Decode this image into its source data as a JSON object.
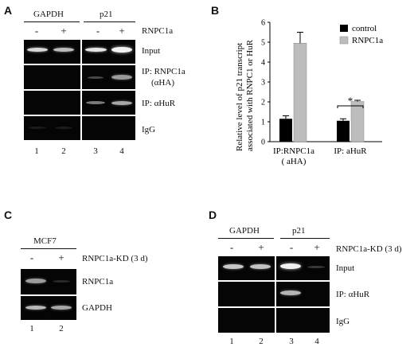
{
  "panels": {
    "a": "A",
    "b": "B",
    "c": "C",
    "d": "D"
  },
  "panel_a": {
    "groups": [
      "GAPDH",
      "p21"
    ],
    "treatment": "RNPC1a",
    "signs": [
      "-",
      "+",
      "-",
      "+"
    ],
    "rows": [
      "Input",
      "IP: RNPC1a",
      "(αHA)",
      "IP: αHuR",
      "IgG"
    ],
    "lanes": [
      "1",
      "2",
      "3",
      "4"
    ]
  },
  "panel_b": {
    "ylabel_line1": "Relative level of p21 transcript",
    "ylabel_line2": "associated with RNPC1 or HuR",
    "legend": [
      "control",
      "RNPC1a"
    ],
    "group_labels": [
      [
        "IP:RNPC1a",
        "( aHA)"
      ],
      [
        "IP: aHuR"
      ]
    ],
    "significance": "*",
    "colors": {
      "control": "#000000",
      "RNPC1a": "#bdbdbd"
    }
  },
  "panel_c": {
    "cell_line": "MCF7",
    "treatment": "RNPC1a-KD (3 d)",
    "signs": [
      "-",
      "+"
    ],
    "rows": [
      "RNPC1a",
      "GAPDH"
    ],
    "lanes": [
      "1",
      "2"
    ]
  },
  "panel_d": {
    "groups": [
      "GAPDH",
      "p21"
    ],
    "treatment": "RNPC1a-KD (3 d)",
    "signs": [
      "-",
      "+",
      "-",
      "+"
    ],
    "rows": [
      "Input",
      "IP: αHuR",
      "IgG"
    ],
    "lanes": [
      "1",
      "2",
      "3",
      "4"
    ]
  },
  "chart_data": {
    "type": "bar",
    "categories": [
      "IP:RNPC1a ( aHA)",
      "IP: aHuR"
    ],
    "series": [
      {
        "name": "control",
        "values": [
          1.15,
          1.05
        ],
        "errors": [
          0.15,
          0.1
        ]
      },
      {
        "name": "RNPC1a",
        "values": [
          4.95,
          2.02
        ],
        "errors": [
          0.55,
          0.06
        ]
      }
    ],
    "ylim": [
      0,
      6
    ],
    "yticks": [
      "0",
      "1",
      "2",
      "3",
      "4",
      "5",
      "6"
    ],
    "ylabel": "Relative level of p21 transcript associated with RNPC1 or HuR",
    "legend_position": "top-right",
    "grid": false
  }
}
